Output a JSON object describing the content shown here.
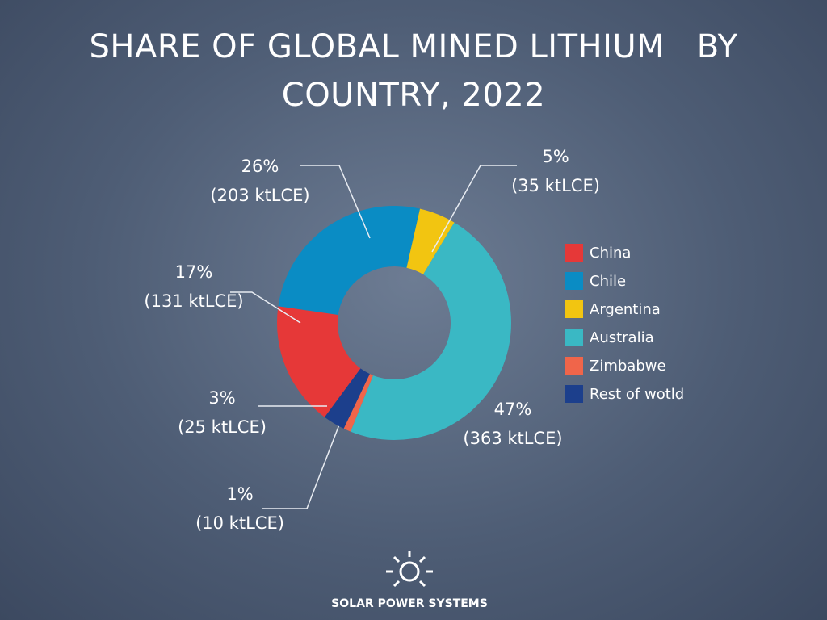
{
  "chart_data": {
    "type": "donut",
    "title": "SHARE OF GLOBAL MINED LITHIUM   BY COUNTRY, 2022",
    "categories": [
      "China",
      "Chile",
      "Argentina",
      "Australia",
      "Zimbabwe",
      "Rest of wotld"
    ],
    "values": [
      17,
      26,
      5,
      47,
      1,
      3
    ],
    "value_labels": [
      "17%",
      "26%",
      "5%",
      "47%",
      "1%",
      "3%"
    ],
    "detail_labels": [
      "(131 ktLCE)",
      "(203 ktLCE)",
      "(35 ktLCE)",
      "(363 ktLCE)",
      "(10 ktLCE)",
      "(25 ktLCE)"
    ],
    "colors": [
      "#e63838",
      "#0a8cc4",
      "#f2c511",
      "#3ab8c4",
      "#f0654a",
      "#1c3f8c"
    ],
    "legend": "right"
  },
  "brand": "SOLAR POWER SYSTEMS"
}
